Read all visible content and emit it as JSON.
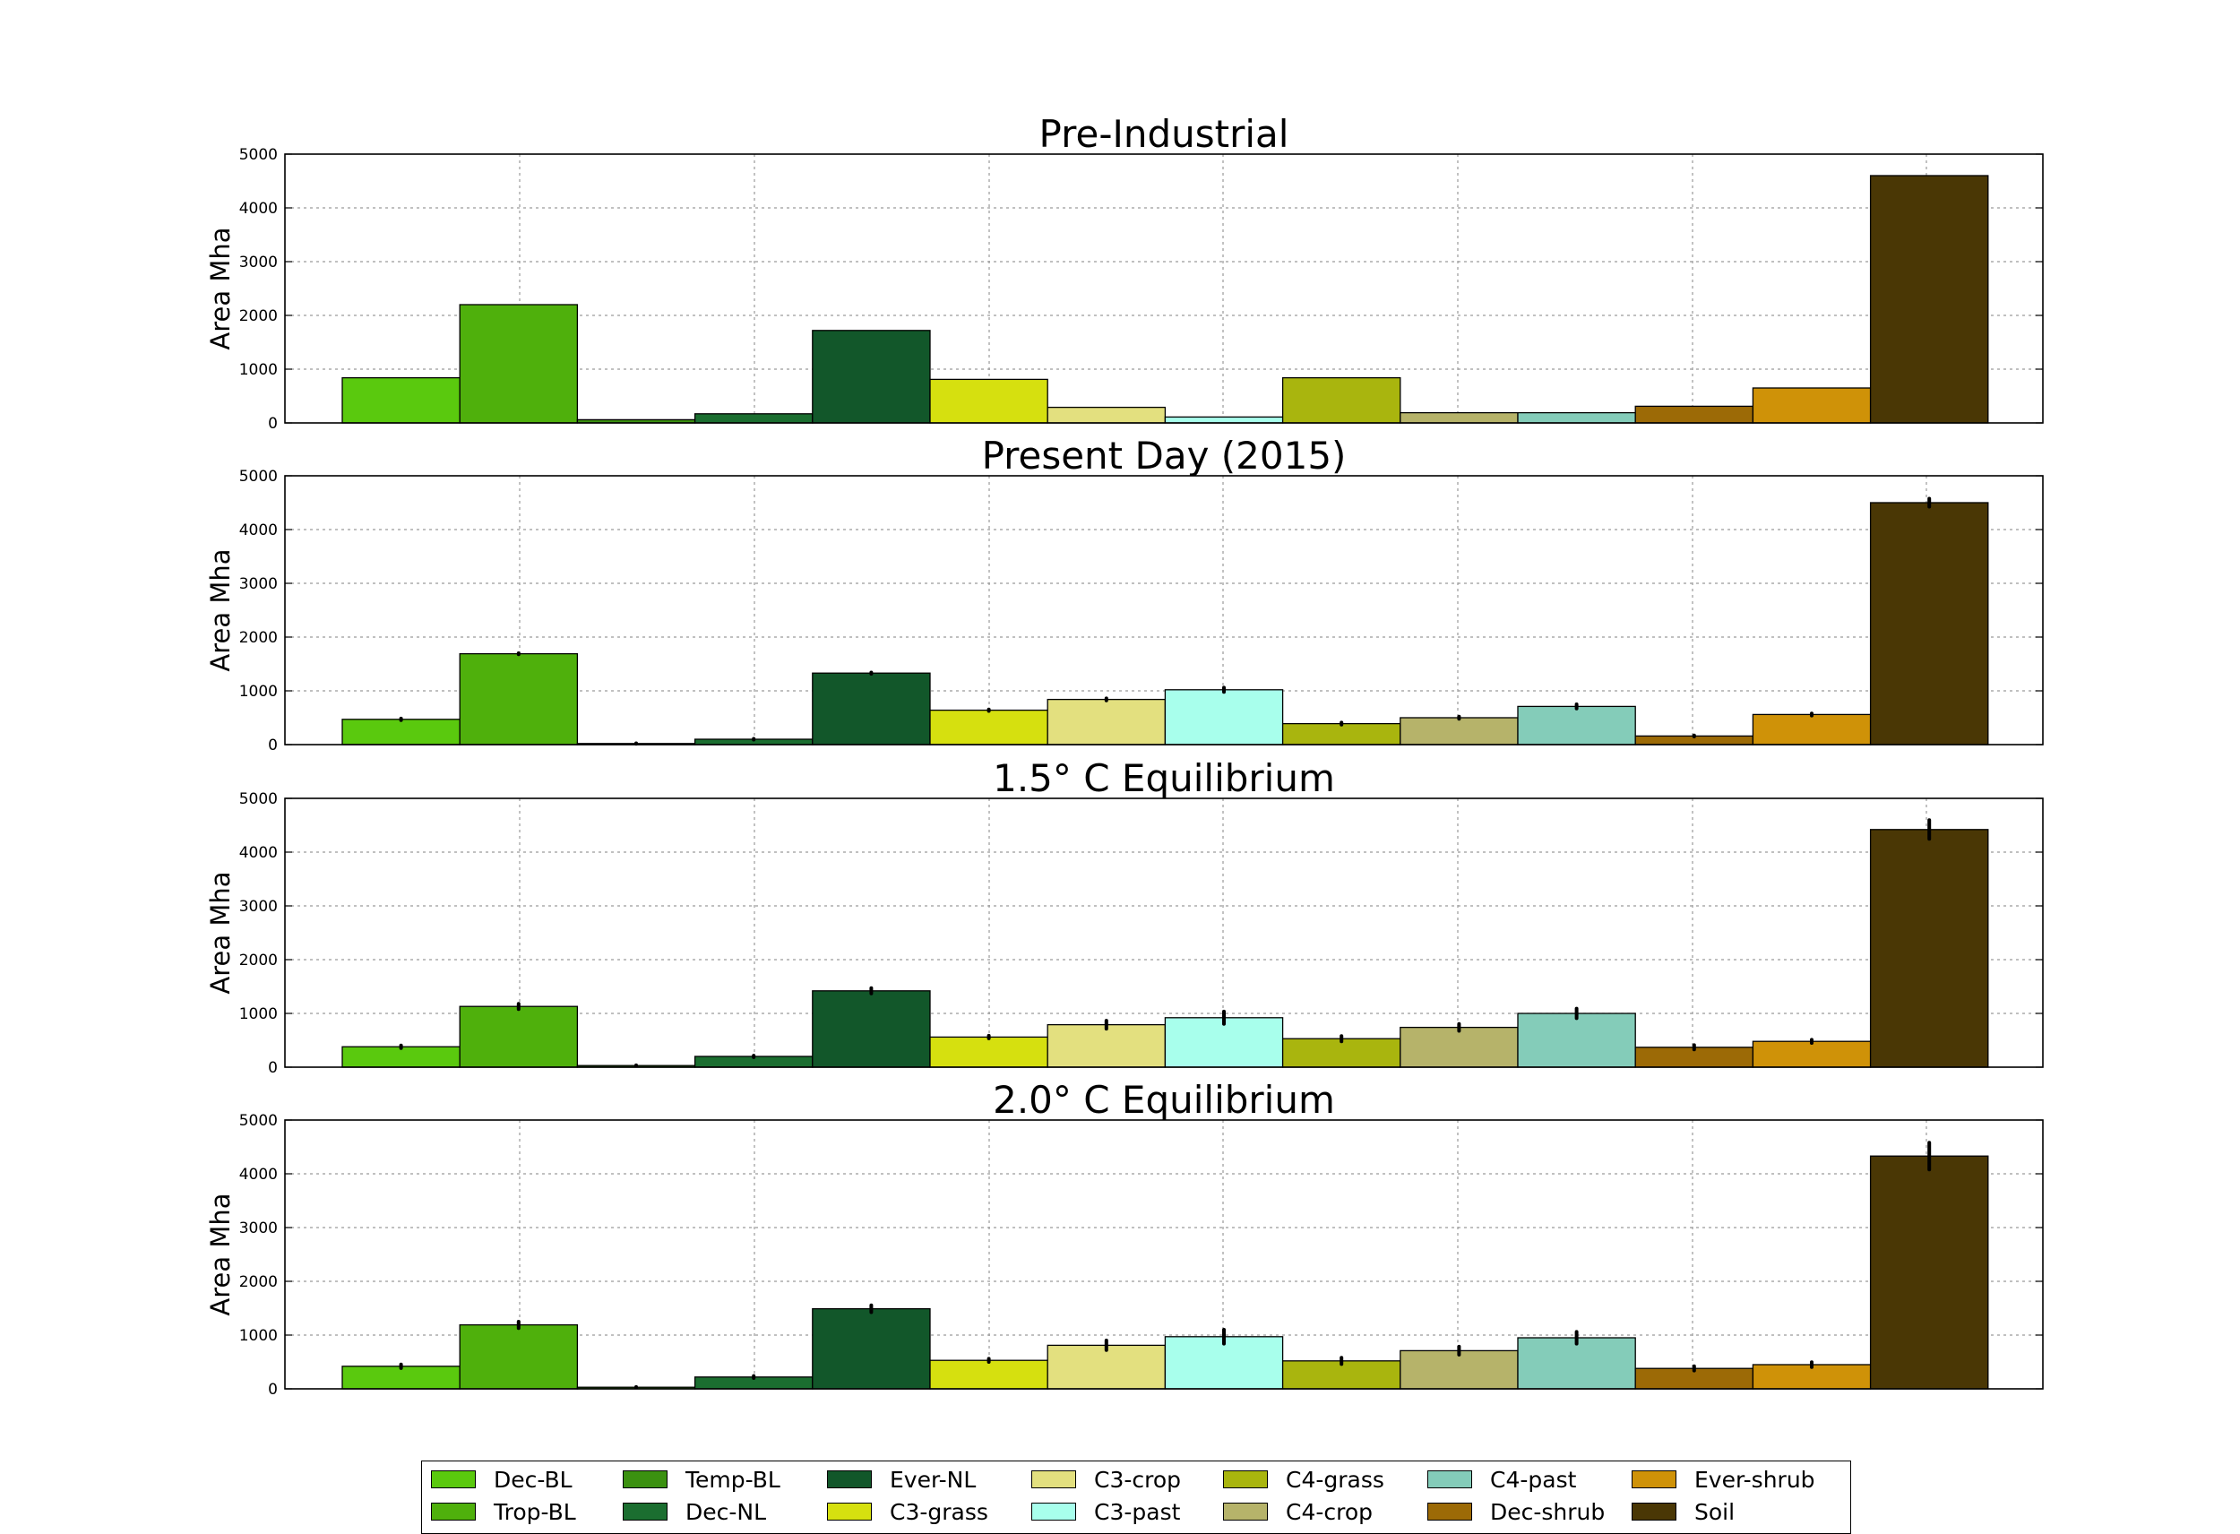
{
  "chart_data": [
    {
      "type": "bar",
      "title": "Pre-Industrial",
      "ylabel": "Area Mha",
      "ylim": [
        0,
        5000
      ],
      "yticks": [
        0,
        1000,
        2000,
        3000,
        4000,
        5000
      ],
      "categories": [
        "Dec-BL",
        "Trop-BL",
        "Temp-BL",
        "Dec-NL",
        "Ever-NL",
        "C3-grass",
        "C3-crop",
        "C3-past",
        "C4-grass",
        "C4-crop",
        "C4-past",
        "Dec-shrub",
        "Ever-shrub",
        "Soil"
      ],
      "values": [
        840,
        2200,
        60,
        170,
        1720,
        810,
        290,
        110,
        840,
        190,
        190,
        310,
        650,
        4600
      ],
      "errors": [
        0,
        0,
        0,
        0,
        0,
        0,
        0,
        0,
        0,
        0,
        0,
        0,
        0,
        0
      ],
      "grid": true
    },
    {
      "type": "bar",
      "title": "Present Day (2015)",
      "ylabel": "Area Mha",
      "ylim": [
        0,
        5000
      ],
      "yticks": [
        0,
        1000,
        2000,
        3000,
        4000,
        5000
      ],
      "categories": [
        "Dec-BL",
        "Trop-BL",
        "Temp-BL",
        "Dec-NL",
        "Ever-NL",
        "C3-grass",
        "C3-crop",
        "C3-past",
        "C4-grass",
        "C4-crop",
        "C4-past",
        "Dec-shrub",
        "Ever-shrub",
        "Soil"
      ],
      "values": [
        470,
        1690,
        20,
        100,
        1330,
        640,
        840,
        1020,
        390,
        500,
        710,
        160,
        560,
        4500
      ],
      "errors": [
        30,
        20,
        10,
        15,
        25,
        30,
        40,
        80,
        40,
        40,
        80,
        20,
        40,
        150
      ],
      "grid": true
    },
    {
      "type": "bar",
      "title": "1.5° C Equilibrium",
      "ylabel": "Area Mha",
      "ylim": [
        0,
        5000
      ],
      "yticks": [
        0,
        1000,
        2000,
        3000,
        4000,
        5000
      ],
      "categories": [
        "Dec-BL",
        "Trop-BL",
        "Temp-BL",
        "Dec-NL",
        "Ever-NL",
        "C3-grass",
        "C3-crop",
        "C3-past",
        "C4-grass",
        "C4-crop",
        "C4-past",
        "Dec-shrub",
        "Ever-shrub",
        "Soil"
      ],
      "values": [
        380,
        1130,
        30,
        200,
        1420,
        560,
        790,
        920,
        530,
        740,
        1000,
        370,
        480,
        4420
      ],
      "errors": [
        50,
        100,
        10,
        30,
        100,
        50,
        150,
        230,
        100,
        130,
        180,
        80,
        60,
        350
      ],
      "grid": true
    },
    {
      "type": "bar",
      "title": "2.0° C Equilibrium",
      "ylabel": "Area Mha",
      "ylim": [
        0,
        5000
      ],
      "yticks": [
        0,
        1000,
        2000,
        3000,
        4000,
        5000
      ],
      "categories": [
        "Dec-BL",
        "Trop-BL",
        "Temp-BL",
        "Dec-NL",
        "Ever-NL",
        "C3-grass",
        "C3-crop",
        "C3-past",
        "C4-grass",
        "C4-crop",
        "C4-past",
        "Dec-shrub",
        "Ever-shrub",
        "Soil"
      ],
      "values": [
        420,
        1190,
        30,
        220,
        1490,
        530,
        810,
        970,
        520,
        710,
        950,
        380,
        450,
        4330
      ],
      "errors": [
        70,
        120,
        10,
        40,
        130,
        60,
        180,
        260,
        120,
        150,
        220,
        80,
        90,
        500
      ],
      "grid": true
    }
  ],
  "series_colors": {
    "Dec-BL": "#5ac90e",
    "Trop-BL": "#4fb00c",
    "Temp-BL": "#3b9110",
    "Dec-NL": "#1b6e30",
    "Ever-NL": "#12572a",
    "C3-grass": "#d6e00f",
    "C3-crop": "#e3e07f",
    "C3-past": "#a8ffec",
    "C4-grass": "#a9b50e",
    "C4-crop": "#b6b36a",
    "C4-past": "#84ccb9",
    "Dec-shrub": "#9c6a06",
    "Ever-shrub": "#cf9208",
    "Soil": "#4a3705"
  },
  "legend": {
    "placement": "bottom-center",
    "items": [
      "Dec-BL",
      "Trop-BL",
      "Temp-BL",
      "Dec-NL",
      "Ever-NL",
      "C3-grass",
      "C3-crop",
      "C3-past",
      "C4-grass",
      "C4-crop",
      "C4-past",
      "Dec-shrub",
      "Ever-shrub",
      "Soil"
    ]
  }
}
